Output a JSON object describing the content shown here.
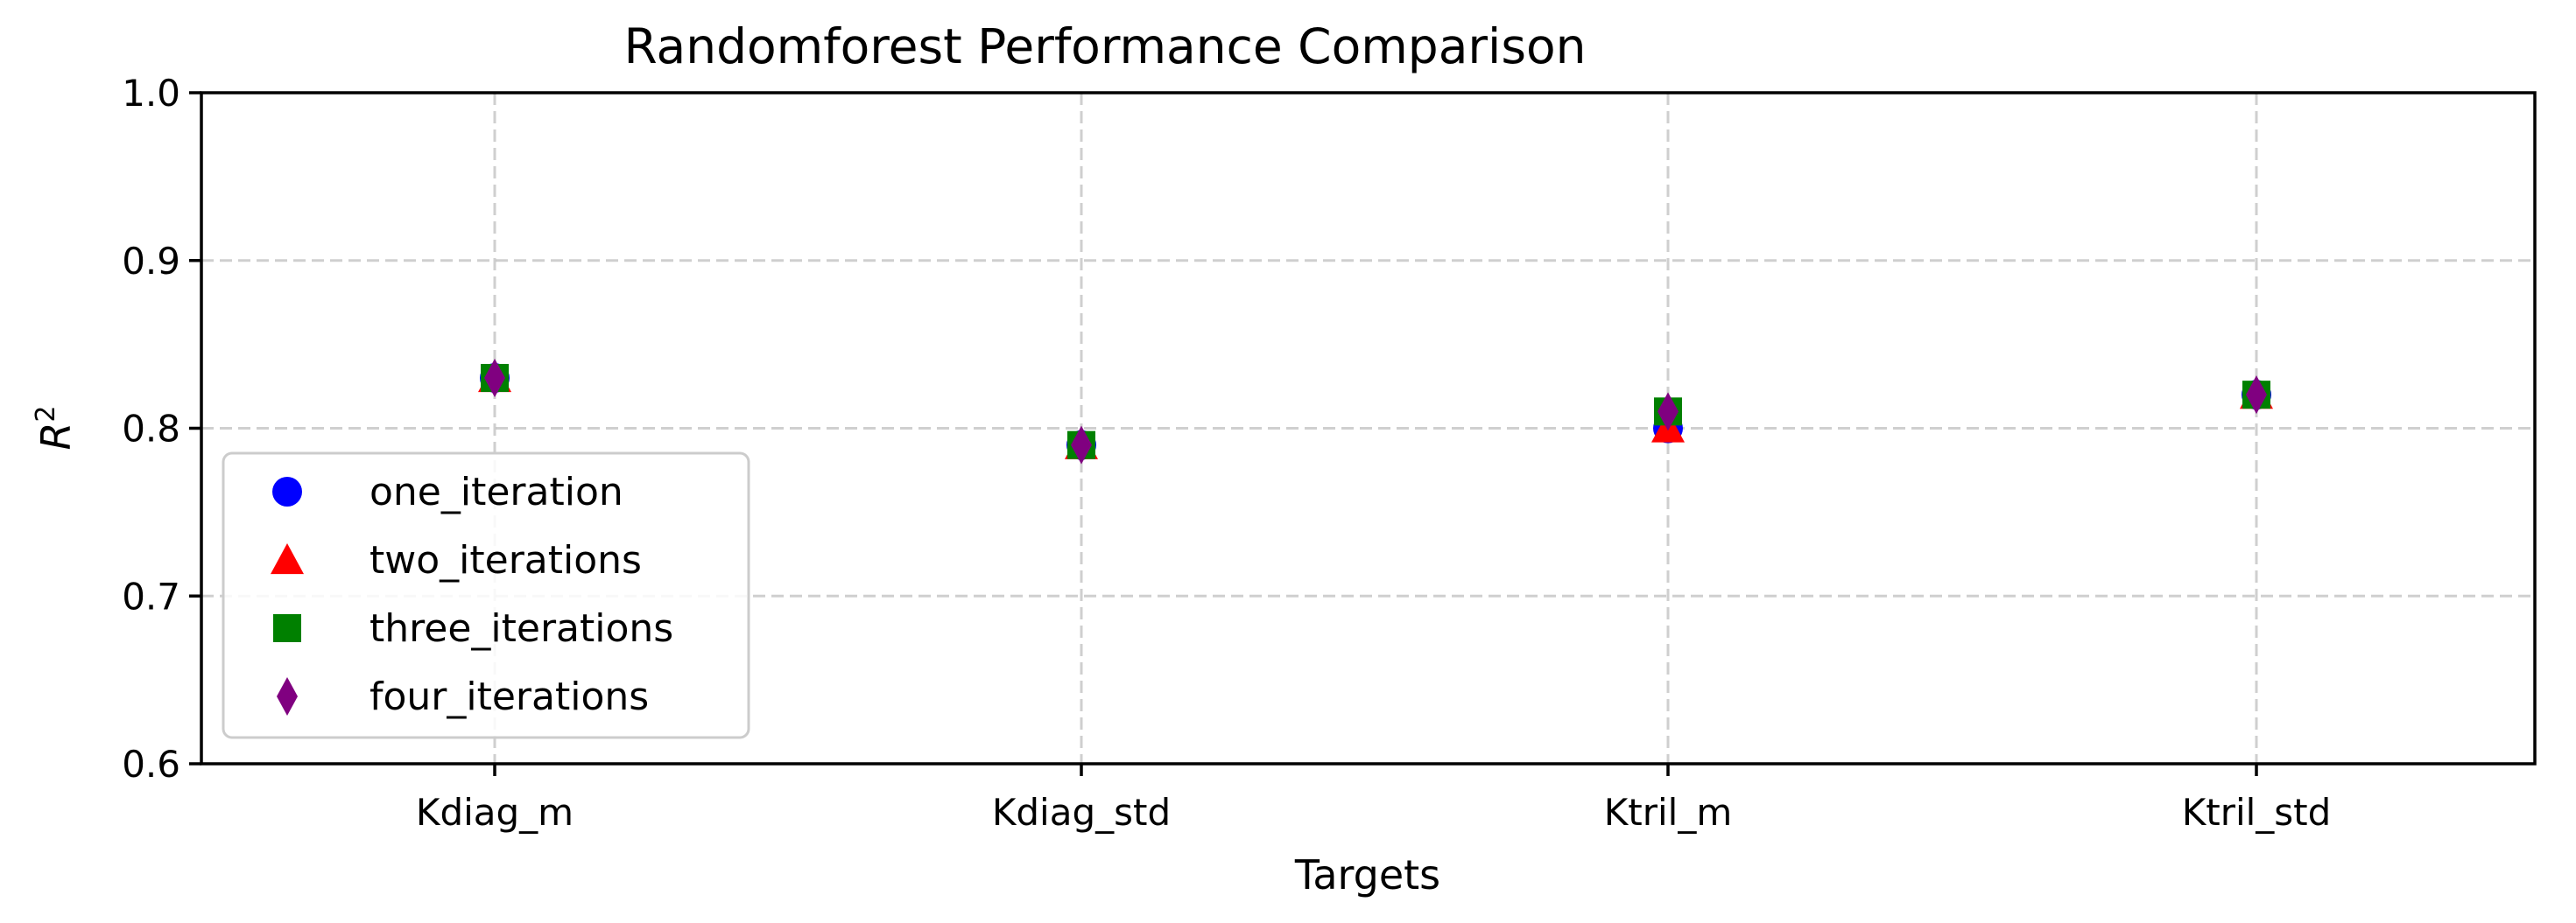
{
  "chart_data": {
    "type": "scatter",
    "title": "Randomforest Performance Comparison",
    "xlabel": "Targets",
    "ylabel_main": "R",
    "ylabel_sup": "2",
    "categories": [
      "Kdiag_m",
      "Kdiag_std",
      "Ktril_m",
      "Ktril_std"
    ],
    "ylim": [
      0.6,
      1.0
    ],
    "yticks": [
      "0.6",
      "0.7",
      "0.8",
      "0.9",
      "1.0"
    ],
    "grid": true,
    "legend_position": "lower-left",
    "series": [
      {
        "name": "one_iteration",
        "marker": "circle",
        "color": "#0000ff",
        "values": [
          0.83,
          0.79,
          0.8,
          0.82
        ]
      },
      {
        "name": "two_iterations",
        "marker": "triangle",
        "color": "#ff0000",
        "values": [
          0.83,
          0.79,
          0.8,
          0.82
        ]
      },
      {
        "name": "three_iterations",
        "marker": "square",
        "color": "#008000",
        "values": [
          0.83,
          0.79,
          0.81,
          0.82
        ]
      },
      {
        "name": "four_iterations",
        "marker": "diamond",
        "color": "#800080",
        "values": [
          0.83,
          0.79,
          0.81,
          0.82
        ]
      }
    ]
  }
}
